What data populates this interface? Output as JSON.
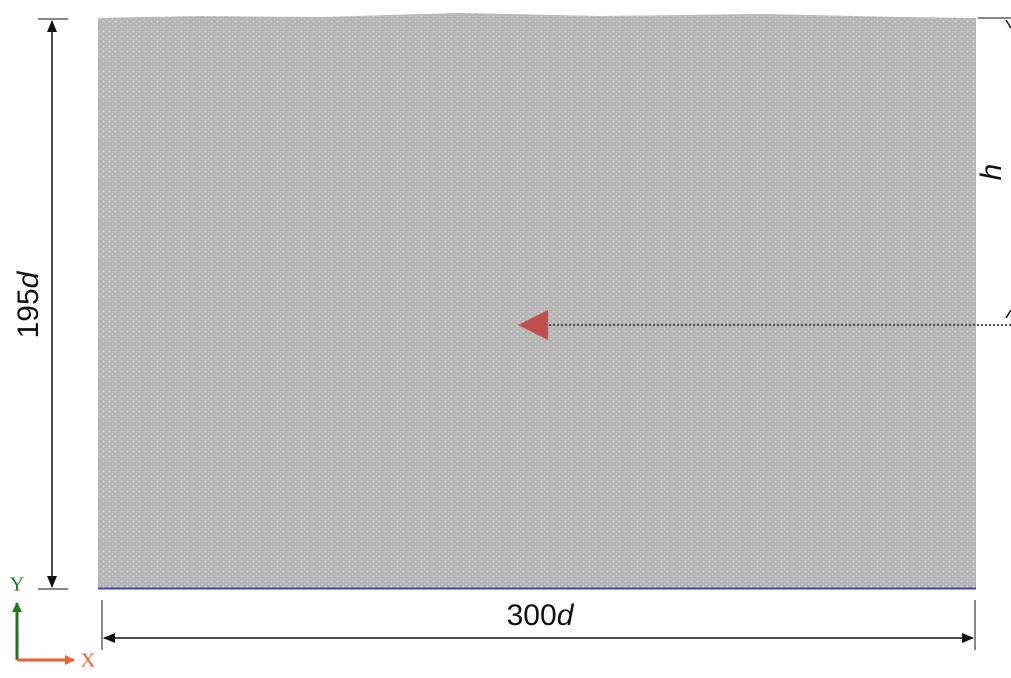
{
  "dimensions": {
    "height": {
      "number": "195",
      "unit": "d"
    },
    "width": {
      "number": "300",
      "unit": "d"
    },
    "depth": "h"
  },
  "axes": {
    "y": "Y",
    "x": "X"
  }
}
